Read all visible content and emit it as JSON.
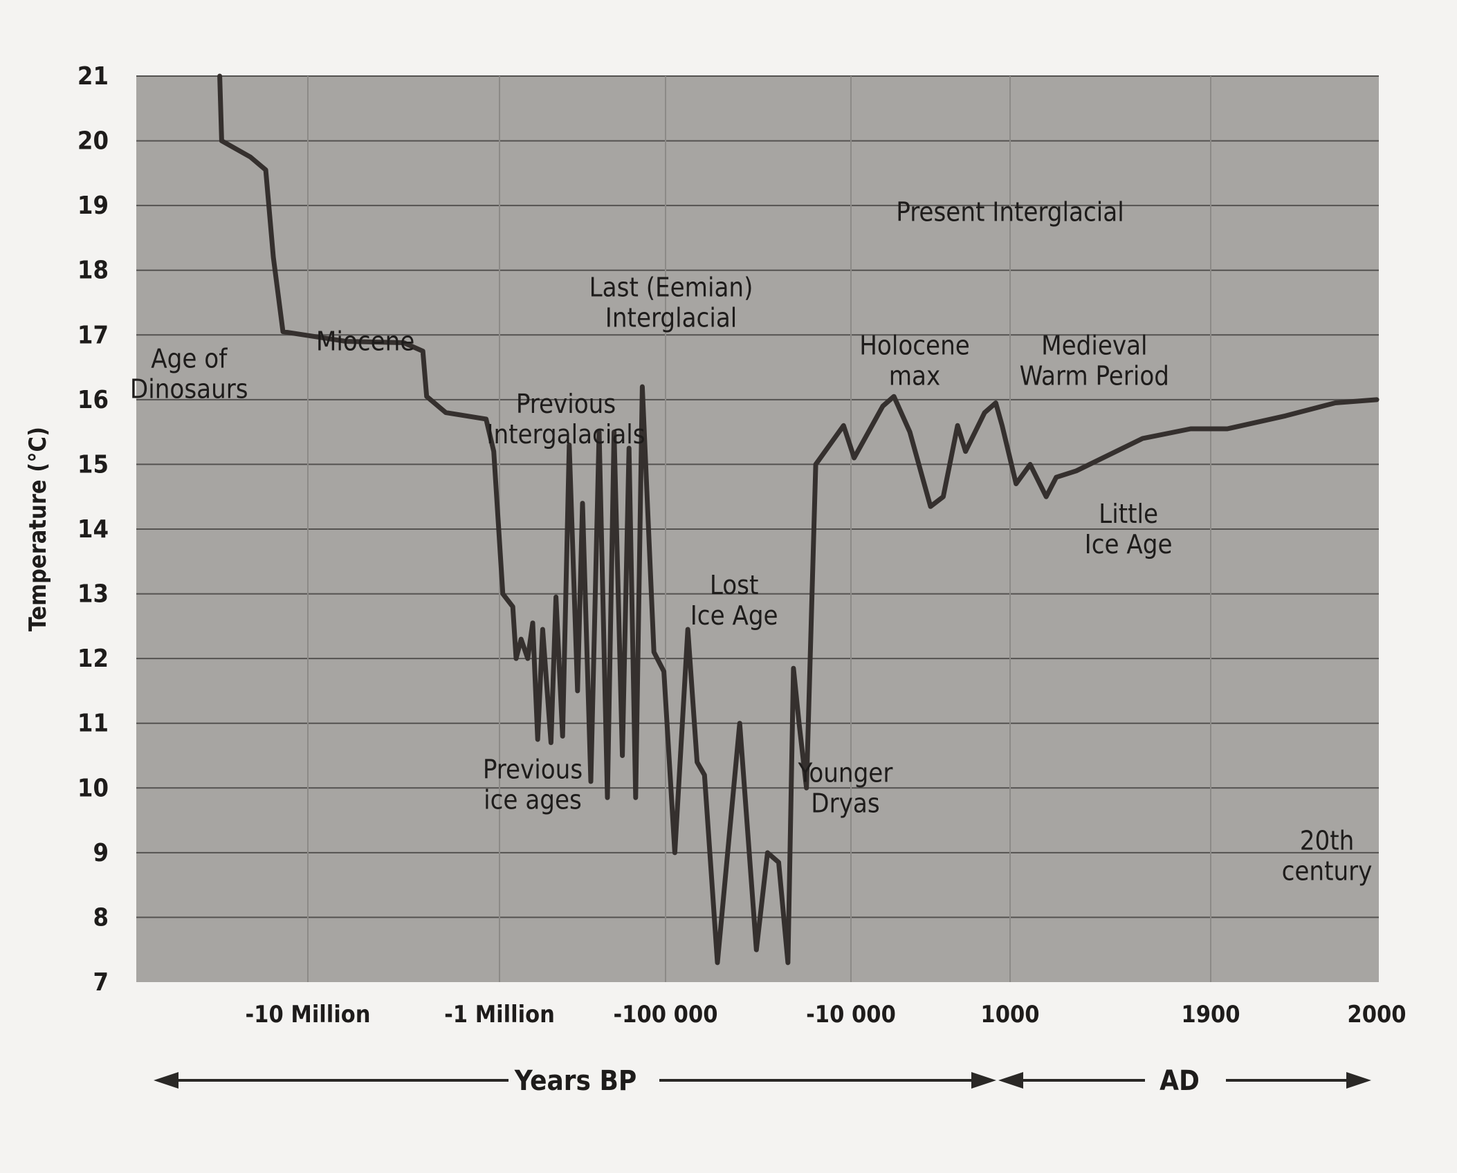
{
  "chart_data": {
    "type": "line",
    "ylabel": "Temperature (°C)",
    "ylim": [
      7,
      21
    ],
    "y_ticks": [
      "21",
      "20",
      "19",
      "18",
      "17",
      "16",
      "15",
      "14",
      "13",
      "12",
      "11",
      "10",
      "9",
      "8",
      "7"
    ],
    "x_ticks": [
      "-10 Million",
      "-1 Million",
      "-100 000",
      "-10 000",
      "1000",
      "1900",
      "2000"
    ],
    "x_axis_note": "Piecewise axis: segments between labelled ticks are not to a common scale. x values are ordinal positions, where 0 = '-10 Million', 1 = '-1 Million', 2 = '-100 000', 3 = '-10 000', 4 = '1000', 5 = '1900', 6 = '2000'.",
    "grid": true,
    "series": [
      {
        "points": [
          [
            -0.46,
            21.0
          ],
          [
            -0.45,
            20.0
          ],
          [
            -0.3,
            19.75
          ],
          [
            -0.22,
            19.55
          ],
          [
            -0.18,
            18.2
          ],
          [
            -0.13,
            17.05
          ],
          [
            0.2,
            16.9
          ],
          [
            0.5,
            16.88
          ],
          [
            0.6,
            16.75
          ],
          [
            0.62,
            16.05
          ],
          [
            0.72,
            15.8
          ],
          [
            0.93,
            15.7
          ],
          [
            0.97,
            15.2
          ],
          [
            1.02,
            13.0
          ],
          [
            1.08,
            12.8
          ],
          [
            1.1,
            12.0
          ],
          [
            1.13,
            12.3
          ],
          [
            1.17,
            12.0
          ],
          [
            1.2,
            12.55
          ],
          [
            1.23,
            10.75
          ],
          [
            1.26,
            12.45
          ],
          [
            1.31,
            10.7
          ],
          [
            1.34,
            12.95
          ],
          [
            1.38,
            10.8
          ],
          [
            1.42,
            15.3
          ],
          [
            1.47,
            11.5
          ],
          [
            1.5,
            14.4
          ],
          [
            1.55,
            10.1
          ],
          [
            1.6,
            15.5
          ],
          [
            1.65,
            9.85
          ],
          [
            1.69,
            15.5
          ],
          [
            1.74,
            10.5
          ],
          [
            1.78,
            15.25
          ],
          [
            1.82,
            9.85
          ],
          [
            1.86,
            16.2
          ],
          [
            1.93,
            12.1
          ],
          [
            1.99,
            11.8
          ],
          [
            2.05,
            9.0
          ],
          [
            2.12,
            12.45
          ],
          [
            2.17,
            10.4
          ],
          [
            2.21,
            10.2
          ],
          [
            2.28,
            7.3
          ],
          [
            2.4,
            11.0
          ],
          [
            2.49,
            7.5
          ],
          [
            2.55,
            9.0
          ],
          [
            2.61,
            8.85
          ],
          [
            2.66,
            7.3
          ],
          [
            2.69,
            11.85
          ],
          [
            2.72,
            11.0
          ],
          [
            2.76,
            10.0
          ],
          [
            2.81,
            15.0
          ],
          [
            2.96,
            15.6
          ],
          [
            3.02,
            15.1
          ],
          [
            3.2,
            15.9
          ],
          [
            3.27,
            16.05
          ],
          [
            3.37,
            15.5
          ],
          [
            3.5,
            14.35
          ],
          [
            3.58,
            14.5
          ],
          [
            3.67,
            15.6
          ],
          [
            3.72,
            15.2
          ],
          [
            3.84,
            15.8
          ],
          [
            3.91,
            15.95
          ],
          [
            3.95,
            15.6
          ],
          [
            4.03,
            14.7
          ],
          [
            4.1,
            15.0
          ],
          [
            4.18,
            14.5
          ],
          [
            4.23,
            14.8
          ],
          [
            4.33,
            14.9
          ],
          [
            4.66,
            15.4
          ],
          [
            4.9,
            15.55
          ],
          [
            5.1,
            15.55
          ],
          [
            5.45,
            15.75
          ],
          [
            5.75,
            15.95
          ],
          [
            6.0,
            16.0
          ]
        ]
      }
    ],
    "annotations": [
      {
        "lines": [
          "Age of",
          "Dinosaurs"
        ],
        "x": -0.62,
        "y": 16.4
      },
      {
        "lines": [
          "Miocene"
        ],
        "x": 0.3,
        "y": 16.9
      },
      {
        "lines": [
          "Last (Eemian)",
          "Interglacial"
        ],
        "x": 2.03,
        "y": 17.5
      },
      {
        "lines": [
          "Previous",
          "Intergalacials"
        ],
        "x": 1.4,
        "y": 15.7
      },
      {
        "lines": [
          "Present Interglacial"
        ],
        "x": 4.0,
        "y": 18.9
      },
      {
        "lines": [
          "Holocene",
          "max"
        ],
        "x": 3.4,
        "y": 16.6
      },
      {
        "lines": [
          "Medieval",
          "Warm Period"
        ],
        "x": 4.42,
        "y": 16.6
      },
      {
        "lines": [
          "Little",
          "Ice Age"
        ],
        "x": 4.59,
        "y": 14.0
      },
      {
        "lines": [
          "Lost",
          "Ice Age"
        ],
        "x": 2.37,
        "y": 12.9
      },
      {
        "lines": [
          "Previous",
          "ice ages"
        ],
        "x": 1.2,
        "y": 10.05
      },
      {
        "lines": [
          "Younger",
          "Dryas"
        ],
        "x": 2.97,
        "y": 10.0
      },
      {
        "lines": [
          "20th",
          "century"
        ],
        "x": 5.7,
        "y": 8.95
      }
    ],
    "footer": {
      "left": "Years BP",
      "right": "AD"
    }
  }
}
